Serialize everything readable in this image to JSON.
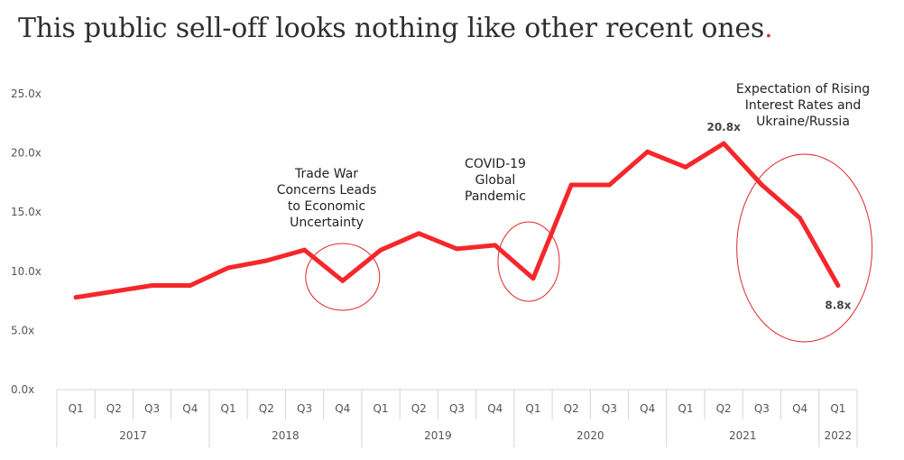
{
  "title": "This public sell-off looks nothing like other recent ones",
  "title_dot": ".",
  "title_dot_color": "#d9342b",
  "chart_data": {
    "type": "line",
    "categories": [
      "Q1",
      "Q2",
      "Q3",
      "Q4",
      "Q1",
      "Q2",
      "Q3",
      "Q4",
      "Q1",
      "Q2",
      "Q3",
      "Q4",
      "Q1",
      "Q2",
      "Q3",
      "Q4",
      "Q1",
      "Q2",
      "Q3",
      "Q4",
      "Q1"
    ],
    "years": [
      {
        "label": "2017",
        "count": 4
      },
      {
        "label": "2018",
        "count": 4
      },
      {
        "label": "2019",
        "count": 4
      },
      {
        "label": "2020",
        "count": 4
      },
      {
        "label": "2021",
        "count": 4
      },
      {
        "label": "2022",
        "count": 1
      }
    ],
    "series": [
      {
        "values": [
          7.8,
          8.3,
          8.8,
          8.8,
          10.3,
          10.9,
          11.8,
          9.2,
          11.8,
          13.2,
          11.9,
          12.2,
          9.4,
          17.3,
          17.3,
          20.1,
          18.8,
          20.8,
          17.3,
          14.5,
          8.8
        ],
        "color": "#f5272b"
      }
    ],
    "ylim": [
      0,
      25
    ],
    "yticks": [
      0,
      5,
      10,
      15,
      20,
      25
    ],
    "ytick_labels": [
      "0.0x",
      "5.0x",
      "10.0x",
      "15.0x",
      "20.0x",
      "25.0x"
    ],
    "data_labels": [
      {
        "index": 17,
        "text": "20.8x"
      },
      {
        "index": 20,
        "text": "8.8x"
      }
    ],
    "annotations": [
      {
        "lines": [
          "Trade War",
          "Concerns Leads",
          "to Economic",
          "Uncertainty"
        ]
      },
      {
        "lines": [
          "COVID-19",
          "Global",
          "Pandemic"
        ]
      },
      {
        "lines": [
          "Expectation of Rising",
          "Interest Rates and",
          "Ukraine/Russia"
        ]
      }
    ],
    "highlight_color": "#e0262b",
    "grid": false
  }
}
